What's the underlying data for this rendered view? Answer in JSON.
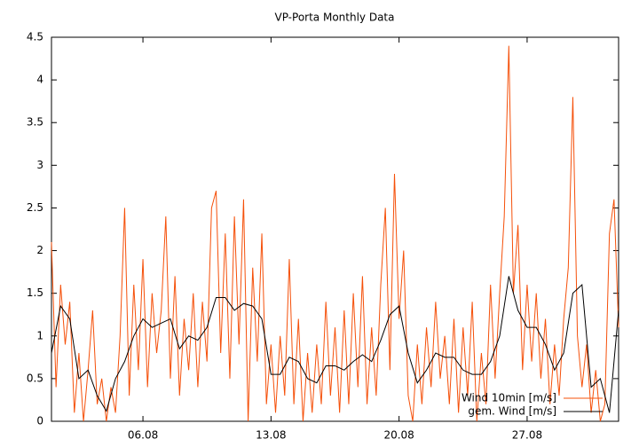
{
  "chart_data": {
    "type": "line",
    "title": "VP-Porta Monthly Data",
    "xlim": [
      1,
      32
    ],
    "ylim": [
      0,
      4.5
    ],
    "xticks": [
      {
        "value": 6,
        "label": "06.08"
      },
      {
        "value": 13,
        "label": "13.08"
      },
      {
        "value": 20,
        "label": "20.08"
      },
      {
        "value": 27,
        "label": "27.08"
      }
    ],
    "yticks": [
      0,
      0.5,
      1,
      1.5,
      2,
      2.5,
      3,
      3.5,
      4,
      4.5
    ],
    "legend": "lower right",
    "series": [
      {
        "name": "Wind 10min [m/s]",
        "color": "#f5500a",
        "x": [
          1,
          1.25,
          1.5,
          1.75,
          2,
          2.25,
          2.5,
          2.75,
          3,
          3.25,
          3.5,
          3.75,
          4,
          4.25,
          4.5,
          4.75,
          5,
          5.25,
          5.5,
          5.75,
          6,
          6.25,
          6.5,
          6.75,
          7,
          7.25,
          7.5,
          7.75,
          8,
          8.25,
          8.5,
          8.75,
          9,
          9.25,
          9.5,
          9.75,
          10,
          10.25,
          10.5,
          10.75,
          11,
          11.25,
          11.5,
          11.75,
          12,
          12.25,
          12.5,
          12.75,
          13,
          13.25,
          13.5,
          13.75,
          14,
          14.25,
          14.5,
          14.75,
          15,
          15.25,
          15.5,
          15.75,
          16,
          16.25,
          16.5,
          16.75,
          17,
          17.25,
          17.5,
          17.75,
          18,
          18.25,
          18.5,
          18.75,
          19,
          19.25,
          19.5,
          19.75,
          20,
          20.25,
          20.5,
          20.75,
          21,
          21.25,
          21.5,
          21.75,
          22,
          22.25,
          22.5,
          22.75,
          23,
          23.25,
          23.5,
          23.75,
          24,
          24.25,
          24.5,
          24.75,
          25,
          25.25,
          25.5,
          25.75,
          26,
          26.25,
          26.5,
          26.75,
          27,
          27.25,
          27.5,
          27.75,
          28,
          28.25,
          28.5,
          28.75,
          29,
          29.25,
          29.5,
          29.75,
          30,
          30.25,
          30.5,
          30.75,
          31,
          31.25,
          31.5,
          31.75,
          32
        ],
        "values": [
          2.1,
          0.4,
          1.6,
          0.9,
          1.4,
          0.1,
          0.8,
          0.0,
          0.6,
          1.3,
          0.2,
          0.5,
          0.0,
          0.4,
          0.1,
          1.0,
          2.5,
          0.3,
          1.6,
          0.6,
          1.9,
          0.4,
          1.5,
          0.8,
          1.3,
          2.4,
          0.5,
          1.7,
          0.3,
          1.2,
          0.6,
          1.5,
          0.4,
          1.4,
          0.7,
          2.5,
          2.7,
          0.8,
          2.2,
          0.5,
          2.4,
          0.9,
          2.6,
          0.0,
          1.8,
          0.7,
          2.2,
          0.2,
          0.9,
          0.1,
          1.0,
          0.3,
          1.9,
          0.2,
          1.2,
          0.0,
          0.8,
          0.1,
          0.9,
          0.2,
          1.4,
          0.3,
          1.1,
          0.1,
          1.3,
          0.2,
          1.5,
          0.4,
          1.7,
          0.2,
          1.1,
          0.3,
          1.6,
          2.5,
          0.6,
          2.9,
          1.2,
          2.0,
          0.3,
          0.0,
          0.9,
          0.2,
          1.1,
          0.4,
          1.4,
          0.5,
          1.0,
          0.2,
          1.2,
          0.1,
          1.1,
          0.3,
          1.4,
          0.0,
          0.8,
          0.2,
          1.6,
          0.5,
          1.5,
          2.4,
          4.4,
          1.5,
          2.3,
          0.6,
          1.6,
          0.7,
          1.5,
          0.5,
          1.2,
          0.2,
          0.9,
          0.3,
          1.2,
          1.8,
          3.8,
          1.0,
          0.4,
          0.9,
          0.1,
          0.6,
          0.0,
          0.2,
          2.2,
          2.6,
          1.1
        ]
      },
      {
        "name": "gem. Wind [m/s]",
        "color": "#000000",
        "x": [
          1,
          1.5,
          2,
          2.5,
          3,
          3.5,
          4,
          4.5,
          5,
          5.5,
          6,
          6.5,
          7,
          7.5,
          8,
          8.5,
          9,
          9.5,
          10,
          10.5,
          11,
          11.5,
          12,
          12.5,
          13,
          13.5,
          14,
          14.5,
          15,
          15.5,
          16,
          16.5,
          17,
          17.5,
          18,
          18.5,
          19,
          19.5,
          20,
          20.5,
          21,
          21.5,
          22,
          22.5,
          23,
          23.5,
          24,
          24.5,
          25,
          25.5,
          26,
          26.5,
          27,
          27.5,
          28,
          28.5,
          29,
          29.5,
          30,
          30.5,
          31,
          31.5,
          32
        ],
        "values": [
          0.8,
          1.35,
          1.2,
          0.5,
          0.6,
          0.3,
          0.12,
          0.5,
          0.7,
          1.0,
          1.2,
          1.1,
          1.15,
          1.2,
          0.85,
          1.0,
          0.95,
          1.1,
          1.45,
          1.45,
          1.3,
          1.38,
          1.35,
          1.2,
          0.55,
          0.55,
          0.75,
          0.7,
          0.5,
          0.45,
          0.65,
          0.65,
          0.6,
          0.7,
          0.78,
          0.7,
          0.95,
          1.25,
          1.35,
          0.8,
          0.45,
          0.6,
          0.8,
          0.75,
          0.75,
          0.6,
          0.55,
          0.55,
          0.7,
          1.0,
          1.7,
          1.3,
          1.1,
          1.1,
          0.9,
          0.6,
          0.8,
          1.5,
          1.6,
          0.4,
          0.5,
          0.1,
          1.3
        ]
      }
    ]
  }
}
